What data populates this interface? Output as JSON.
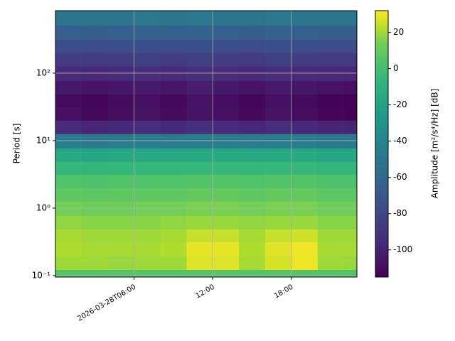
{
  "chart_data": {
    "type": "heatmap",
    "x": [
      "2026-03-28T00:00",
      "2026-03-28T02:00",
      "2026-03-28T04:00",
      "2026-03-28T06:00",
      "2026-03-28T08:00",
      "2026-03-28T10:00",
      "2026-03-28T12:00",
      "2026-03-28T14:00",
      "2026-03-28T16:00",
      "2026-03-28T18:00",
      "2026-03-28T20:00",
      "2026-03-28T22:00"
    ],
    "y": [
      0.1,
      0.15,
      0.25,
      0.4,
      0.6,
      1,
      1.6,
      2.5,
      4,
      6,
      10,
      16,
      25,
      40,
      60,
      100,
      160,
      250,
      400,
      650
    ],
    "z": [
      [
        5,
        5,
        6,
        5,
        5,
        6,
        6,
        5,
        6,
        6,
        5,
        5
      ],
      [
        20,
        20,
        19,
        20,
        20,
        28,
        28,
        21,
        27,
        30,
        20,
        19
      ],
      [
        22,
        21,
        21,
        21,
        22,
        29,
        29,
        22,
        28,
        30,
        21,
        21
      ],
      [
        21,
        20,
        20,
        20,
        21,
        25,
        25,
        21,
        25,
        26,
        20,
        20
      ],
      [
        18,
        17,
        17,
        17,
        18,
        19,
        19,
        18,
        19,
        19,
        17,
        17
      ],
      [
        14,
        13,
        13,
        14,
        14,
        15,
        15,
        14,
        15,
        15,
        13,
        13
      ],
      [
        9,
        8,
        9,
        9,
        9,
        10,
        10,
        9,
        10,
        10,
        8,
        8
      ],
      [
        4,
        3,
        4,
        4,
        4,
        5,
        5,
        4,
        5,
        5,
        3,
        3
      ],
      [
        -5,
        -6,
        -5,
        -5,
        -5,
        -4,
        -4,
        -5,
        -4,
        -4,
        -6,
        -6
      ],
      [
        -16,
        -17,
        -16,
        -16,
        -16,
        -15,
        -15,
        -16,
        -15,
        -15,
        -17,
        -17
      ],
      [
        -45,
        -48,
        -46,
        -45,
        -46,
        -44,
        -45,
        -46,
        -44,
        -45,
        -47,
        -48
      ],
      [
        -95,
        -98,
        -96,
        -94,
        -96,
        -93,
        -95,
        -97,
        -94,
        -96,
        -98,
        -99
      ],
      [
        -108,
        -111,
        -109,
        -107,
        -110,
        -106,
        -108,
        -111,
        -107,
        -109,
        -112,
        -113
      ],
      [
        -110,
        -112,
        -110,
        -108,
        -111,
        -107,
        -109,
        -112,
        -108,
        -110,
        -113,
        -114
      ],
      [
        -104,
        -106,
        -105,
        -103,
        -105,
        -102,
        -104,
        -106,
        -103,
        -105,
        -107,
        -108
      ],
      [
        -95,
        -96,
        -95,
        -94,
        -95,
        -93,
        -94,
        -96,
        -94,
        -95,
        -96,
        -97
      ],
      [
        -85,
        -86,
        -85,
        -84,
        -85,
        -84,
        -85,
        -86,
        -84,
        -85,
        -86,
        -86
      ],
      [
        -75,
        -76,
        -75,
        -74,
        -75,
        -74,
        -75,
        -76,
        -74,
        -75,
        -76,
        -76
      ],
      [
        -65,
        -66,
        -65,
        -64,
        -65,
        -64,
        -65,
        -66,
        -64,
        -65,
        -66,
        -66
      ],
      [
        -50,
        -51,
        -50,
        -49,
        -50,
        -49,
        -50,
        -51,
        -49,
        -50,
        -51,
        -51
      ]
    ],
    "xlim": [
      "2026-03-28T00:00",
      "2026-03-28T23:00"
    ],
    "xticks": [
      "2026-03-28T06:00",
      {
        "value": "2026-03-28T12:00",
        "label": "12:00"
      },
      {
        "value": "2026-03-28T18:00",
        "label": "18:00"
      }
    ],
    "ylabel": "Period [s]",
    "ylim": [
      0.095,
      843
    ],
    "yscale": "log",
    "yticks": [
      {
        "value": 0.1,
        "label": "10⁻¹"
      },
      {
        "value": 1,
        "label": "10⁰"
      },
      {
        "value": 10,
        "label": "10¹"
      },
      {
        "value": 100,
        "label": "10²"
      }
    ],
    "grid": true,
    "colormap": "viridis",
    "clim": [
      -115,
      32
    ],
    "cticks": [
      -100,
      -80,
      -60,
      -40,
      -20,
      0,
      20
    ],
    "colorbar_label": "Amplitude [m²/s⁴/Hz] [dB]"
  }
}
